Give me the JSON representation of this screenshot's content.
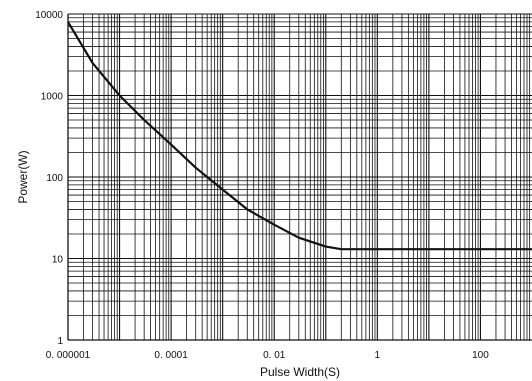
{
  "chart_data": {
    "type": "line",
    "title": "",
    "xlabel": "Pulse Width(S)",
    "ylabel": "Power(W)",
    "x_scale": "log",
    "y_scale": "log",
    "xlim": [
      1e-06,
      1000
    ],
    "ylim": [
      1,
      10000
    ],
    "x_ticks": [
      1e-06,
      0.0001,
      0.01,
      1,
      100
    ],
    "x_tick_labels": [
      "0. 000001",
      "0. 0001",
      "0. 01",
      "1",
      "100"
    ],
    "y_ticks": [
      1,
      10,
      100,
      1000,
      10000
    ],
    "y_tick_labels": [
      "1",
      "10",
      "100",
      "1000",
      "10000"
    ],
    "grid": true,
    "series": [
      {
        "x": [
          1e-06,
          3e-06,
          1e-05,
          3e-05,
          0.0001,
          0.0003,
          0.001,
          0.003,
          0.01,
          0.03,
          0.1,
          0.2,
          0.5,
          1,
          10,
          100,
          1000
        ],
        "y": [
          8000,
          2500,
          1000,
          500,
          250,
          130,
          70,
          40,
          26,
          18,
          14,
          13,
          13,
          13,
          13,
          13,
          13
        ]
      }
    ],
    "colors": {
      "line": "#111111",
      "grid": "#111111",
      "background": "#ffffff"
    }
  }
}
